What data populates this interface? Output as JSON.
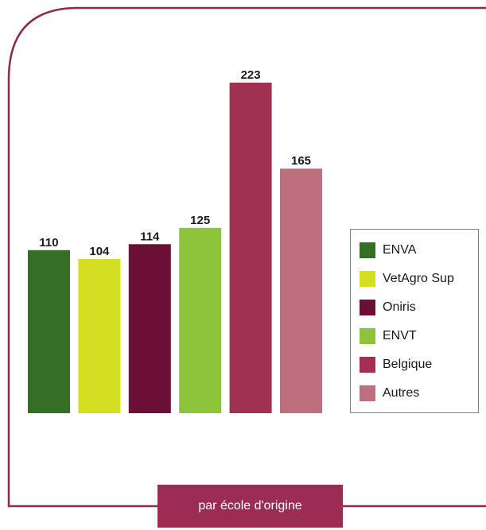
{
  "caption": "par école d'origine",
  "colors": {
    "frame": "#8e2a50",
    "legend_border": "#6e8492",
    "caption_bg": "#9b2c54"
  },
  "chart_data": {
    "type": "bar",
    "categories": [
      "ENVA",
      "VetAgro Sup",
      "Oniris",
      "ENVT",
      "Belgique",
      "Autres"
    ],
    "values": [
      110,
      104,
      114,
      125,
      223,
      165
    ],
    "colors": [
      "#346f24",
      "#d5df22",
      "#6b0f36",
      "#8dc43c",
      "#a13153",
      "#bd6f7f"
    ],
    "title": "",
    "xlabel": "",
    "ylabel": "",
    "ylim": [
      0,
      223
    ],
    "grid": false,
    "data_labels": true,
    "legend": {
      "placement": "right",
      "items": [
        "ENVA",
        "VetAgro Sup",
        "Oniris",
        "ENVT",
        "Belgique",
        "Autres"
      ]
    }
  }
}
